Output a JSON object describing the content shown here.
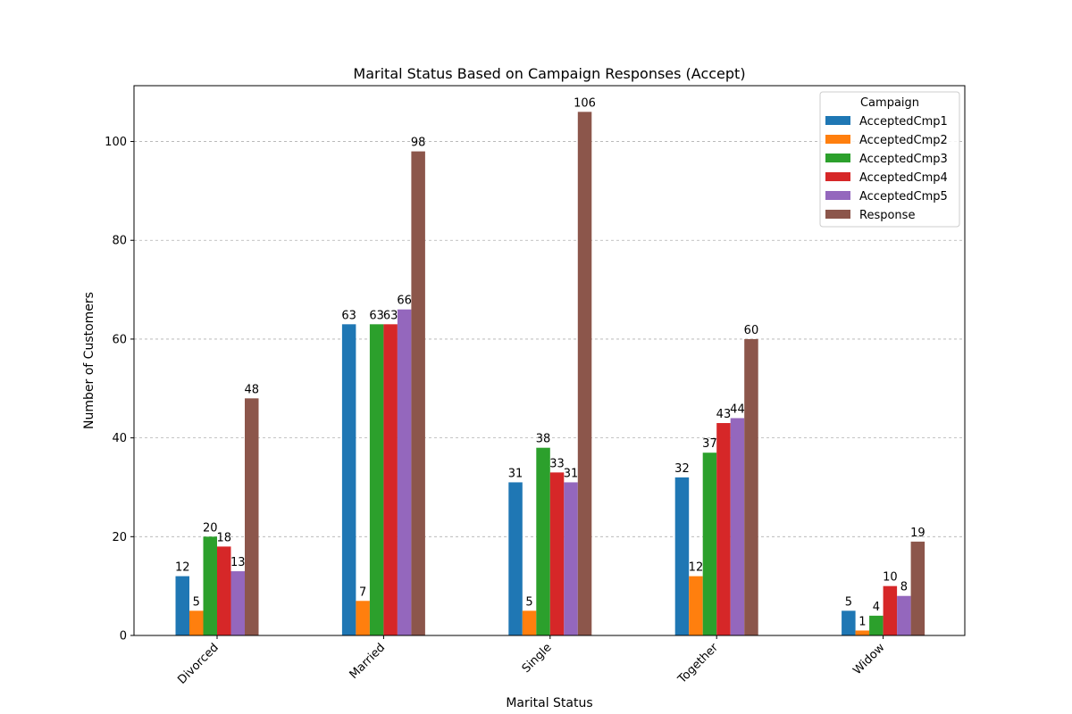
{
  "chart_data": {
    "type": "bar",
    "title": "Marital Status Based on Campaign Responses (Accept)",
    "xlabel": "Marital Status",
    "ylabel": "Number of Customers",
    "categories": [
      "Divorced",
      "Married",
      "Single",
      "Together",
      "Widow"
    ],
    "ylim": [
      0,
      111.3
    ],
    "yticks": [
      0,
      20,
      40,
      60,
      80,
      100
    ],
    "grid": "y-dashed",
    "legend": {
      "title": "Campaign",
      "placement": "top-right"
    },
    "series": [
      {
        "name": "AcceptedCmp1",
        "color": "#1f77b4",
        "values": [
          12,
          63,
          31,
          32,
          5
        ]
      },
      {
        "name": "AcceptedCmp2",
        "color": "#ff7f0e",
        "values": [
          5,
          7,
          5,
          12,
          1
        ]
      },
      {
        "name": "AcceptedCmp3",
        "color": "#2ca02c",
        "values": [
          20,
          63,
          38,
          37,
          4
        ]
      },
      {
        "name": "AcceptedCmp4",
        "color": "#d62728",
        "values": [
          18,
          63,
          33,
          43,
          10
        ]
      },
      {
        "name": "AcceptedCmp5",
        "color": "#9467bd",
        "values": [
          13,
          66,
          31,
          44,
          8
        ]
      },
      {
        "name": "Response",
        "color": "#8c564b",
        "values": [
          48,
          98,
          106,
          60,
          19
        ]
      }
    ]
  }
}
